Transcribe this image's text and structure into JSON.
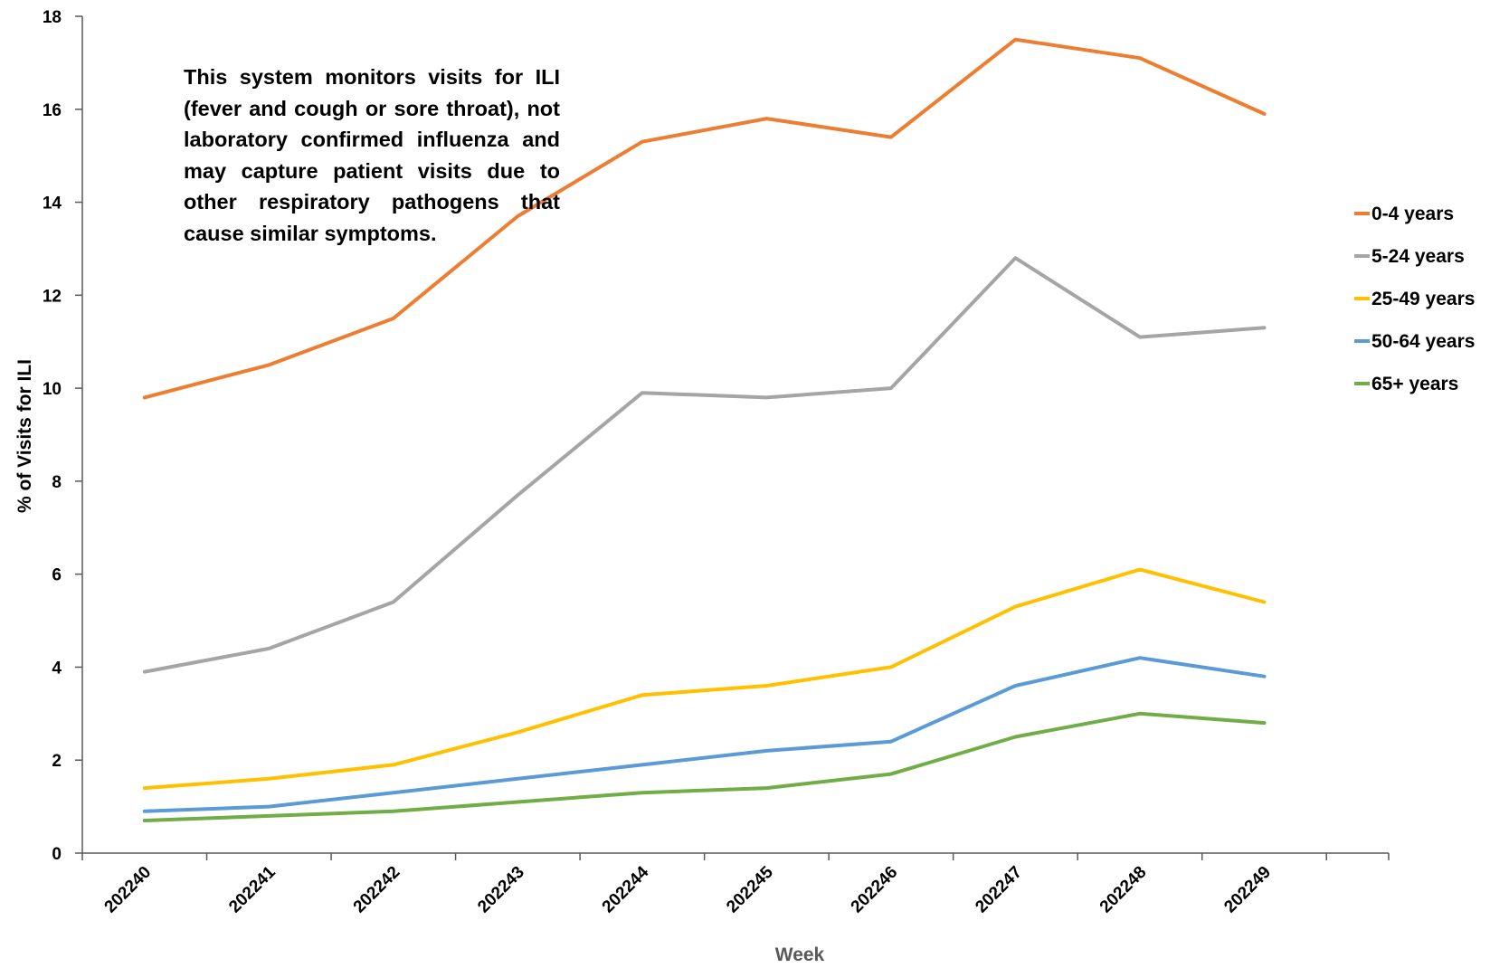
{
  "chart_data": {
    "type": "line",
    "title": "",
    "xlabel": "Week",
    "ylabel": "% of Visits for ILI",
    "categories": [
      "202240",
      "202241",
      "202242",
      "202243",
      "202244",
      "202245",
      "202246",
      "202247",
      "202248",
      "202249"
    ],
    "ylim": [
      0,
      18
    ],
    "yticks": [
      0,
      2,
      4,
      6,
      8,
      10,
      12,
      14,
      16,
      18
    ],
    "grid": false,
    "legend_position": "right",
    "annotation": "This system monitors visits for ILI (fever and cough or sore throat), not laboratory confirmed influenza and may capture patient visits due to other respiratory pathogens that cause similar symptoms.",
    "series": [
      {
        "name": "0-4 years",
        "color": "#ED7D31",
        "values": [
          9.8,
          10.5,
          11.5,
          13.7,
          15.3,
          15.8,
          15.4,
          17.5,
          17.1,
          15.9
        ]
      },
      {
        "name": "5-24 years",
        "color": "#A5A5A5",
        "values": [
          3.9,
          4.4,
          5.4,
          7.7,
          9.9,
          9.8,
          10.0,
          12.8,
          11.1,
          11.3
        ]
      },
      {
        "name": "25-49 years",
        "color": "#FFC000",
        "values": [
          1.4,
          1.6,
          1.9,
          2.6,
          3.4,
          3.6,
          4.0,
          5.3,
          6.1,
          5.4
        ]
      },
      {
        "name": "50-64 years",
        "color": "#5B9BD5",
        "values": [
          0.9,
          1.0,
          1.3,
          1.6,
          1.9,
          2.2,
          2.4,
          3.6,
          4.2,
          3.8
        ]
      },
      {
        "name": "65+ years",
        "color": "#70AD47",
        "values": [
          0.7,
          0.8,
          0.9,
          1.1,
          1.3,
          1.4,
          1.7,
          2.5,
          3.0,
          2.8
        ]
      }
    ],
    "axis_title_colors": {
      "x": "#595959",
      "y": "#000000"
    },
    "axis_color": "#595959"
  }
}
